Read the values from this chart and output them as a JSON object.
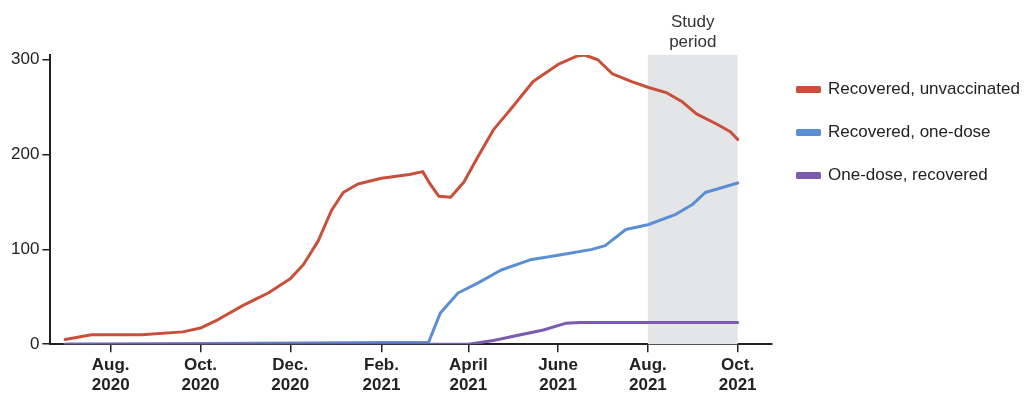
{
  "chart_data": {
    "type": "line",
    "xlim": [
      "2020-06-21",
      "2021-10-24"
    ],
    "ylim": [
      0,
      305
    ],
    "xticks": [
      {
        "value": "2020-08",
        "label": "Aug. 2020"
      },
      {
        "value": "2020-10",
        "label": "Oct. 2020"
      },
      {
        "value": "2020-12",
        "label": "Dec. 2020"
      },
      {
        "value": "2021-02",
        "label": "Feb. 2021"
      },
      {
        "value": "2021-04",
        "label": "April 2021"
      },
      {
        "value": "2021-06",
        "label": "June 2021"
      },
      {
        "value": "2021-08",
        "label": "Aug. 2021"
      },
      {
        "value": "2021-10",
        "label": "Oct. 2021"
      }
    ],
    "yticks": [
      0,
      100,
      200,
      300
    ],
    "grid": false,
    "legend": "top right",
    "marker": "none",
    "line_style": "solid",
    "bands": [
      {
        "axis": "x",
        "from": "2021-08",
        "to": "2021-10",
        "label": "Study period",
        "color": "#e3e5e7"
      }
    ],
    "series": [
      {
        "name": "Recovered, unvaccinated",
        "color": "#c8503a",
        "x": [
          "2020-07-01",
          "2020-07-19",
          "2020-08-22",
          "2020-09-19",
          "2020-10-01",
          "2020-10-13",
          "2020-10-30",
          "2020-11-16",
          "2020-12-01",
          "2020-12-10",
          "2020-12-20",
          "2020-12-29",
          "2021-01-06",
          "2021-01-16",
          "2021-02-01",
          "2021-02-20",
          "2021-03-01",
          "2021-03-06",
          "2021-03-12",
          "2021-03-20",
          "2021-03-29",
          "2021-04-08",
          "2021-04-18",
          "2021-05-02",
          "2021-05-15",
          "2021-06-01",
          "2021-06-14",
          "2021-06-19",
          "2021-06-28",
          "2021-07-08",
          "2021-07-21",
          "2021-08-01",
          "2021-08-14",
          "2021-08-24",
          "2021-09-03",
          "2021-09-17",
          "2021-09-26",
          "2021-10-01"
        ],
        "values": [
          5,
          10,
          10,
          13,
          17,
          26,
          41,
          54,
          69,
          84,
          109,
          141,
          160,
          169,
          175,
          179,
          182,
          169,
          156,
          155,
          171,
          199,
          226,
          252,
          277,
          295,
          304,
          305,
          300,
          285,
          277,
          271,
          265,
          256,
          243,
          232,
          224,
          216
        ]
      },
      {
        "name": "Recovered, one-dose",
        "color": "#5b8fd4",
        "x": [
          "2020-07-01",
          "2021-03-05",
          "2021-03-13",
          "2021-03-25",
          "2021-04-08",
          "2021-04-23",
          "2021-05-13",
          "2021-06-02",
          "2021-06-24",
          "2021-07-03",
          "2021-07-17",
          "2021-08-01",
          "2021-08-20",
          "2021-08-31",
          "2021-09-09",
          "2021-10-01"
        ],
        "values": [
          0,
          2,
          33,
          54,
          65,
          78,
          89,
          94,
          100,
          104,
          121,
          126,
          137,
          147,
          160,
          170
        ]
      },
      {
        "name": "One-dose, recovered",
        "color": "#7b5bb0",
        "x": [
          "2020-07-01",
          "2021-04-01",
          "2021-04-18",
          "2021-05-22",
          "2021-06-06",
          "2021-06-16",
          "2021-10-01"
        ],
        "values": [
          0,
          0,
          4,
          15,
          22,
          23,
          23
        ]
      }
    ]
  }
}
